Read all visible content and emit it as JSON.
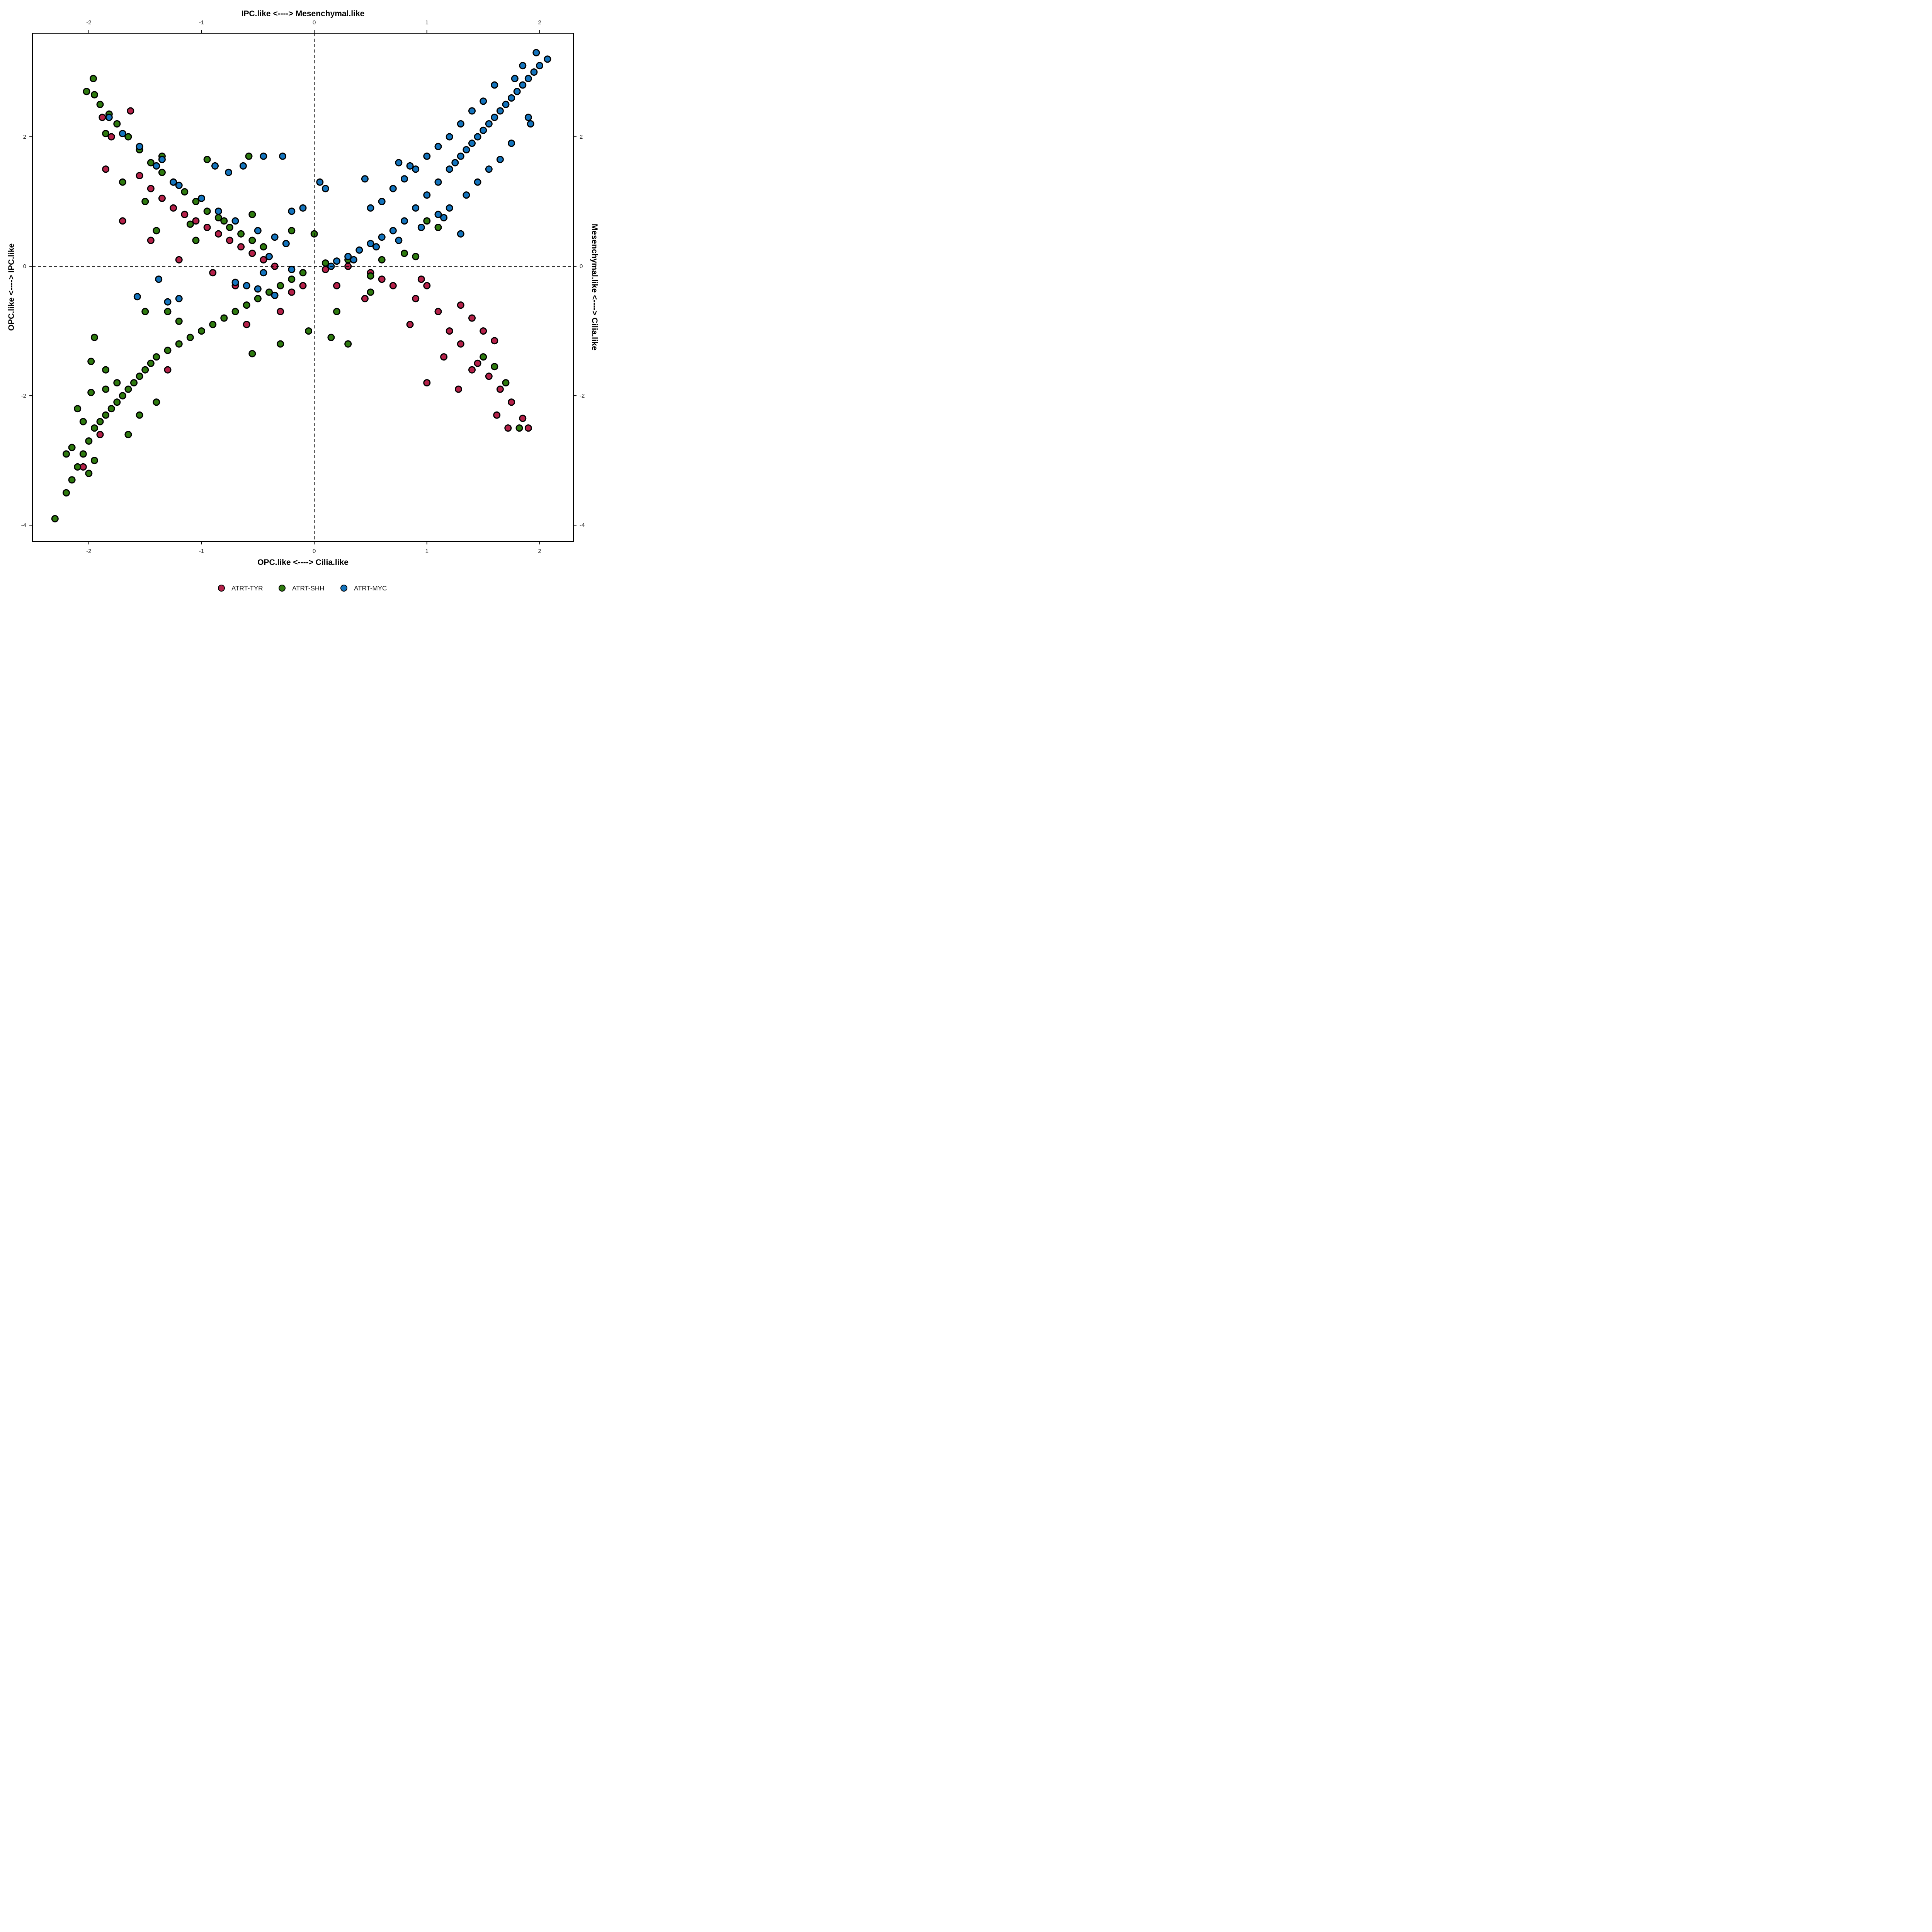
{
  "chart_data": {
    "type": "scatter",
    "axes": {
      "bottom": {
        "label": "OPC.like  <---->  Cilia.like",
        "range": [
          -2.5,
          2.3
        ],
        "ticks": [
          -2,
          -1,
          0,
          1,
          2
        ],
        "tick_labels": [
          "-2",
          "-1",
          "0",
          "1",
          "2"
        ]
      },
      "top": {
        "label": "IPC.like  <---->  Mesenchymal.like",
        "range": [
          -2.5,
          2.3
        ],
        "ticks": [
          -2,
          -1,
          0,
          1,
          2
        ],
        "tick_labels": [
          "-2",
          "-1",
          "0",
          "1",
          "2"
        ]
      },
      "left": {
        "label": "OPC.like  <---->  IPC.like",
        "range": [
          -4.25,
          3.6
        ],
        "ticks": [
          2,
          0,
          -2,
          -4
        ],
        "tick_labels": [
          "2",
          "0",
          "-2",
          "-4"
        ]
      },
      "right": {
        "label": "Mesenchymal.like  <---->  Cilia.like",
        "range": [
          -4.25,
          3.6
        ],
        "ticks": [
          2,
          0,
          -2,
          -4
        ],
        "tick_labels": [
          "2",
          "0",
          "-2",
          "-4"
        ]
      }
    },
    "reference_lines": {
      "x": 0,
      "y": 0,
      "style": "dashed"
    },
    "grid": false,
    "legend": {
      "placement": "bottom",
      "items": [
        {
          "name": "ATRT-TYR",
          "color": "#b5224a"
        },
        {
          "name": "ATRT-SHH",
          "color": "#2e7a0f"
        },
        {
          "name": "ATRT-MYC",
          "color": "#1474bd"
        }
      ]
    },
    "marker": {
      "outline_color": "#000000"
    },
    "series": [
      {
        "name": "ATRT-TYR",
        "color": "#b5224a",
        "points": [
          [
            -1.88,
            2.3
          ],
          [
            -1.8,
            2.0
          ],
          [
            -1.85,
            1.5
          ],
          [
            -1.63,
            2.4
          ],
          [
            -1.7,
            0.7
          ],
          [
            -1.55,
            1.4
          ],
          [
            -1.45,
            1.2
          ],
          [
            -1.35,
            1.05
          ],
          [
            -1.25,
            0.9
          ],
          [
            -1.15,
            0.8
          ],
          [
            -1.05,
            0.7
          ],
          [
            -0.95,
            0.6
          ],
          [
            -0.85,
            0.5
          ],
          [
            -0.75,
            0.4
          ],
          [
            -0.65,
            0.3
          ],
          [
            -0.55,
            0.2
          ],
          [
            -0.45,
            0.1
          ],
          [
            -0.35,
            0.0
          ],
          [
            -1.45,
            0.4
          ],
          [
            -1.2,
            0.1
          ],
          [
            -0.9,
            -0.1
          ],
          [
            -0.7,
            -0.3
          ],
          [
            -0.5,
            -0.5
          ],
          [
            -0.3,
            -0.7
          ],
          [
            -0.1,
            -0.3
          ],
          [
            0.1,
            -0.05
          ],
          [
            0.3,
            0.0
          ],
          [
            0.5,
            -0.1
          ],
          [
            0.7,
            -0.3
          ],
          [
            0.9,
            -0.5
          ],
          [
            1.1,
            -0.7
          ],
          [
            1.2,
            -1.0
          ],
          [
            1.3,
            -1.2
          ],
          [
            1.45,
            -1.5
          ],
          [
            1.55,
            -1.7
          ],
          [
            1.65,
            -1.9
          ],
          [
            1.75,
            -2.1
          ],
          [
            1.85,
            -2.35
          ],
          [
            1.9,
            -2.5
          ],
          [
            1.5,
            -1.0
          ],
          [
            1.6,
            -1.15
          ],
          [
            1.3,
            -0.6
          ],
          [
            1.4,
            -0.8
          ],
          [
            1.15,
            -1.4
          ],
          [
            1.0,
            -1.8
          ],
          [
            1.28,
            -1.9
          ],
          [
            1.72,
            -2.5
          ],
          [
            0.95,
            -0.2
          ],
          [
            1.0,
            -0.3
          ],
          [
            0.85,
            -0.9
          ],
          [
            1.4,
            -1.6
          ],
          [
            1.62,
            -2.3
          ],
          [
            0.6,
            -0.2
          ],
          [
            0.45,
            -0.5
          ],
          [
            -1.9,
            -2.6
          ],
          [
            -2.05,
            -3.1
          ],
          [
            -1.3,
            -1.6
          ],
          [
            -0.6,
            -0.9
          ],
          [
            -0.2,
            -0.4
          ],
          [
            0.2,
            -0.3
          ]
        ]
      },
      {
        "name": "ATRT-SHH",
        "color": "#2e7a0f",
        "points": [
          [
            -2.3,
            -3.9
          ],
          [
            -2.2,
            -3.5
          ],
          [
            -2.15,
            -3.3
          ],
          [
            -2.1,
            -3.1
          ],
          [
            -2.05,
            -2.9
          ],
          [
            -2.0,
            -2.7
          ],
          [
            -1.95,
            -2.5
          ],
          [
            -1.9,
            -2.4
          ],
          [
            -1.85,
            -2.3
          ],
          [
            -1.8,
            -2.2
          ],
          [
            -1.75,
            -2.1
          ],
          [
            -1.7,
            -2.0
          ],
          [
            -1.65,
            -1.9
          ],
          [
            -1.6,
            -1.8
          ],
          [
            -1.55,
            -1.7
          ],
          [
            -1.5,
            -1.6
          ],
          [
            -1.45,
            -1.5
          ],
          [
            -1.4,
            -1.4
          ],
          [
            -1.3,
            -1.3
          ],
          [
            -1.2,
            -1.2
          ],
          [
            -1.1,
            -1.1
          ],
          [
            -1.0,
            -1.0
          ],
          [
            -0.9,
            -0.9
          ],
          [
            -0.8,
            -0.8
          ],
          [
            -0.7,
            -0.7
          ],
          [
            -0.6,
            -0.6
          ],
          [
            -0.5,
            -0.5
          ],
          [
            -0.4,
            -0.4
          ],
          [
            -0.3,
            -0.3
          ],
          [
            -0.2,
            -0.2
          ],
          [
            -0.1,
            -0.1
          ],
          [
            0.1,
            0.05
          ],
          [
            0.3,
            0.1
          ],
          [
            -2.05,
            -2.4
          ],
          [
            -2.1,
            -2.2
          ],
          [
            -1.98,
            -1.95
          ],
          [
            -1.85,
            -1.9
          ],
          [
            -1.75,
            -1.8
          ],
          [
            -2.15,
            -2.8
          ],
          [
            -2.0,
            -3.2
          ],
          [
            -1.65,
            -2.6
          ],
          [
            -1.55,
            -2.3
          ],
          [
            -1.4,
            -2.1
          ],
          [
            -2.2,
            -2.9
          ],
          [
            -1.95,
            -3.0
          ],
          [
            -1.95,
            -1.1
          ],
          [
            -1.98,
            -1.47
          ],
          [
            -1.85,
            -1.6
          ],
          [
            -1.5,
            -0.7
          ],
          [
            -1.3,
            -0.7
          ],
          [
            -1.2,
            -0.85
          ],
          [
            -0.55,
            -1.35
          ],
          [
            -0.3,
            -1.2
          ],
          [
            0.15,
            -1.1
          ],
          [
            0.3,
            -1.2
          ],
          [
            -0.05,
            -1.0
          ],
          [
            -1.96,
            2.9
          ],
          [
            -2.02,
            2.7
          ],
          [
            -1.95,
            2.65
          ],
          [
            -1.9,
            2.5
          ],
          [
            -1.82,
            2.35
          ],
          [
            -1.75,
            2.2
          ],
          [
            -1.65,
            2.0
          ],
          [
            -1.55,
            1.8
          ],
          [
            -1.45,
            1.6
          ],
          [
            -1.35,
            1.45
          ],
          [
            -1.25,
            1.3
          ],
          [
            -1.15,
            1.15
          ],
          [
            -1.05,
            1.0
          ],
          [
            -0.95,
            0.85
          ],
          [
            -0.85,
            0.75
          ],
          [
            -0.75,
            0.6
          ],
          [
            -0.65,
            0.5
          ],
          [
            -0.55,
            0.4
          ],
          [
            -0.45,
            0.3
          ],
          [
            -1.85,
            2.05
          ],
          [
            -1.7,
            1.3
          ],
          [
            -1.35,
            1.7
          ],
          [
            -0.95,
            1.65
          ],
          [
            -0.58,
            1.7
          ],
          [
            -1.5,
            1.0
          ],
          [
            -1.4,
            0.55
          ],
          [
            -1.1,
            0.65
          ],
          [
            -1.05,
            0.4
          ],
          [
            -0.8,
            0.7
          ],
          [
            -0.55,
            0.8
          ],
          [
            -0.2,
            0.55
          ],
          [
            0.0,
            0.5
          ],
          [
            1.0,
            0.7
          ],
          [
            1.1,
            0.6
          ],
          [
            0.8,
            0.2
          ],
          [
            0.9,
            0.15
          ],
          [
            0.6,
            0.1
          ],
          [
            0.5,
            -0.15
          ],
          [
            1.5,
            -1.4
          ],
          [
            1.6,
            -1.55
          ],
          [
            1.82,
            -2.5
          ],
          [
            1.7,
            -1.8
          ],
          [
            0.2,
            -0.7
          ],
          [
            0.5,
            -0.4
          ]
        ]
      },
      {
        "name": "ATRT-MYC",
        "color": "#1474bd",
        "points": [
          [
            2.07,
            3.2
          ],
          [
            2.0,
            3.1
          ],
          [
            1.95,
            3.0
          ],
          [
            1.9,
            2.9
          ],
          [
            1.85,
            2.8
          ],
          [
            1.8,
            2.7
          ],
          [
            1.75,
            2.6
          ],
          [
            1.7,
            2.5
          ],
          [
            1.65,
            2.4
          ],
          [
            1.6,
            2.3
          ],
          [
            1.55,
            2.2
          ],
          [
            1.5,
            2.1
          ],
          [
            1.45,
            2.0
          ],
          [
            1.4,
            1.9
          ],
          [
            1.35,
            1.8
          ],
          [
            1.3,
            1.7
          ],
          [
            1.25,
            1.6
          ],
          [
            1.2,
            1.5
          ],
          [
            1.1,
            1.3
          ],
          [
            1.0,
            1.1
          ],
          [
            0.9,
            0.9
          ],
          [
            0.8,
            0.7
          ],
          [
            0.7,
            0.55
          ],
          [
            0.6,
            0.45
          ],
          [
            0.5,
            0.35
          ],
          [
            0.4,
            0.25
          ],
          [
            0.3,
            0.15
          ],
          [
            0.2,
            0.08
          ],
          [
            1.97,
            3.3
          ],
          [
            1.85,
            3.1
          ],
          [
            1.78,
            2.9
          ],
          [
            1.6,
            2.8
          ],
          [
            1.5,
            2.55
          ],
          [
            1.4,
            2.4
          ],
          [
            1.3,
            2.2
          ],
          [
            1.2,
            2.0
          ],
          [
            1.1,
            1.85
          ],
          [
            1.0,
            1.7
          ],
          [
            0.9,
            1.5
          ],
          [
            0.8,
            1.35
          ],
          [
            0.7,
            1.2
          ],
          [
            0.6,
            1.0
          ],
          [
            0.5,
            0.9
          ],
          [
            1.9,
            2.3
          ],
          [
            1.92,
            2.2
          ],
          [
            1.75,
            1.9
          ],
          [
            1.65,
            1.65
          ],
          [
            1.55,
            1.5
          ],
          [
            1.45,
            1.3
          ],
          [
            1.35,
            1.1
          ],
          [
            1.2,
            0.9
          ],
          [
            1.1,
            0.8
          ],
          [
            1.3,
            0.5
          ],
          [
            0.75,
            1.6
          ],
          [
            0.85,
            1.55
          ],
          [
            0.45,
            1.35
          ],
          [
            0.05,
            1.3
          ],
          [
            0.1,
            1.2
          ],
          [
            -0.1,
            0.9
          ],
          [
            -0.2,
            0.85
          ],
          [
            -0.45,
            1.7
          ],
          [
            -0.28,
            1.7
          ],
          [
            -0.63,
            1.55
          ],
          [
            -0.88,
            1.55
          ],
          [
            -0.76,
            1.45
          ],
          [
            -1.35,
            1.65
          ],
          [
            -1.25,
            1.3
          ],
          [
            -1.82,
            2.3
          ],
          [
            -1.7,
            2.05
          ],
          [
            -1.55,
            1.85
          ],
          [
            -1.4,
            1.55
          ],
          [
            -1.2,
            1.25
          ],
          [
            -1.0,
            1.05
          ],
          [
            -0.85,
            0.85
          ],
          [
            -0.7,
            0.7
          ],
          [
            -0.5,
            0.55
          ],
          [
            -0.35,
            0.45
          ],
          [
            -0.25,
            0.35
          ],
          [
            -0.4,
            0.15
          ],
          [
            -0.45,
            -0.1
          ],
          [
            -0.6,
            -0.3
          ],
          [
            -0.5,
            -0.35
          ],
          [
            -0.35,
            -0.45
          ],
          [
            -1.38,
            -0.2
          ],
          [
            -1.57,
            -0.47
          ],
          [
            -1.3,
            -0.55
          ],
          [
            -1.2,
            -0.5
          ],
          [
            -0.7,
            -0.25
          ],
          [
            -0.2,
            -0.05
          ],
          [
            0.15,
            0.0
          ],
          [
            0.35,
            0.1
          ],
          [
            0.55,
            0.3
          ],
          [
            0.75,
            0.4
          ],
          [
            0.95,
            0.6
          ],
          [
            1.15,
            0.75
          ]
        ]
      }
    ]
  }
}
